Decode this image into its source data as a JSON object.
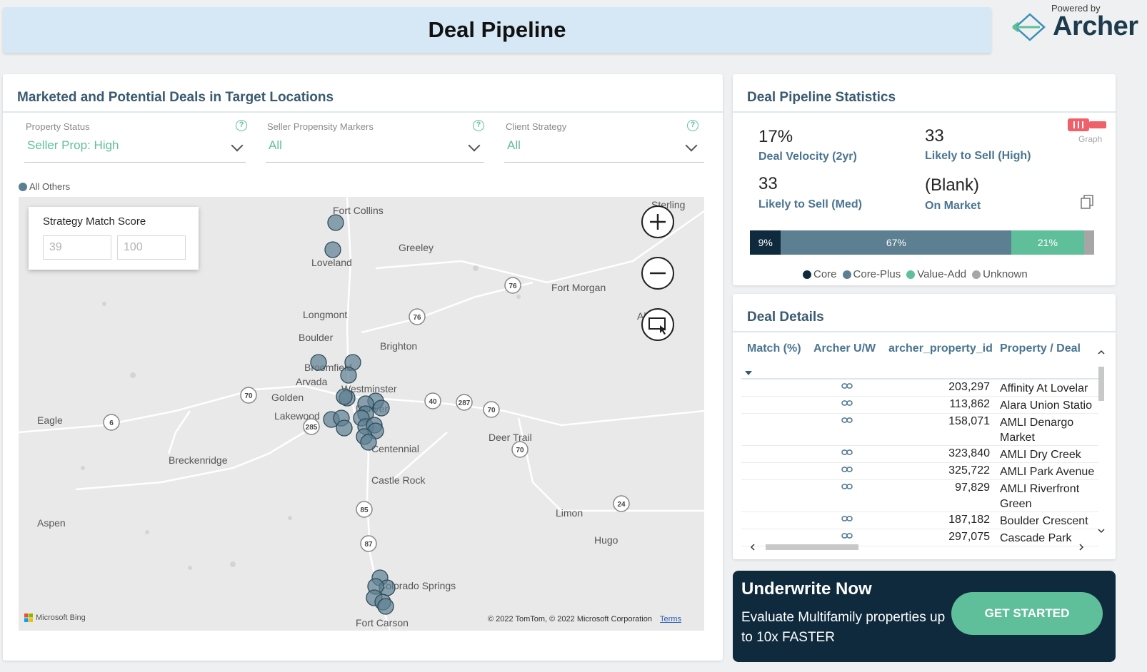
{
  "header": {
    "title": "Deal Pipeline"
  },
  "brand": {
    "powered_by": "Powered by",
    "name": "Archer"
  },
  "map_panel": {
    "title": "Marketed and Potential Deals in Target Locations",
    "slicers": [
      {
        "label": "Property Status",
        "value": "Seller Prop: High"
      },
      {
        "label": "Seller Propensity Markers",
        "value": "All"
      },
      {
        "label": "Client Strategy",
        "value": "All"
      }
    ],
    "legend_label": "All Others",
    "strategy_match": {
      "title": "Strategy Match Score",
      "min": "39",
      "max": "100"
    },
    "cities": [
      {
        "name": "Fort Collins"
      },
      {
        "name": "Greeley"
      },
      {
        "name": "Loveland"
      },
      {
        "name": "Sterling"
      },
      {
        "name": "Longmont"
      },
      {
        "name": "Boulder"
      },
      {
        "name": "Brighton"
      },
      {
        "name": "Fort Morgan"
      },
      {
        "name": "Akron"
      },
      {
        "name": "Broomfield"
      },
      {
        "name": "Arvada"
      },
      {
        "name": "Westminster"
      },
      {
        "name": "Golden"
      },
      {
        "name": "Denver"
      },
      {
        "name": "Lakewood"
      },
      {
        "name": "Eagle"
      },
      {
        "name": "Centennial"
      },
      {
        "name": "Deer Trail"
      },
      {
        "name": "Breckenridge"
      },
      {
        "name": "Castle Rock"
      },
      {
        "name": "Aspen"
      },
      {
        "name": "Limon"
      },
      {
        "name": "Hugo"
      },
      {
        "name": "Colorado Springs"
      },
      {
        "name": "Fort Carson"
      }
    ],
    "shields": [
      "76",
      "76",
      "70",
      "6",
      "285",
      "40",
      "287",
      "70",
      "70",
      "24",
      "85",
      "87"
    ],
    "attribution": {
      "bing": "Microsoft Bing",
      "copyright": "© 2022 TomTom, © 2022 Microsoft Corporation",
      "terms": "Terms"
    },
    "colors": {
      "marker": "#5c7f92",
      "accent": "#5fbf9b"
    }
  },
  "stats_panel": {
    "title": "Deal Pipeline Statistics",
    "stats": [
      {
        "value": "17%",
        "label": "Deal Velocity (2yr)"
      },
      {
        "value": "33",
        "label": "Likely to Sell (High)"
      },
      {
        "value": "33",
        "label": "Likely to Sell (Med)"
      },
      {
        "value": "(Blank)",
        "label": "On Market"
      }
    ],
    "graph_toggle_label": "Graph",
    "breakdown": [
      {
        "name": "Core",
        "pct": 9,
        "label": "9%",
        "color": "#0e2a3c"
      },
      {
        "name": "Core-Plus",
        "pct": 67,
        "label": "67%",
        "color": "#5c7f92"
      },
      {
        "name": "Value-Add",
        "pct": 21,
        "label": "21%",
        "color": "#5fbf9b"
      },
      {
        "name": "Unknown",
        "pct": 3,
        "label": "",
        "color": "#a6a6a6"
      }
    ]
  },
  "details_panel": {
    "title": "Deal Details",
    "columns": [
      "Match (%)",
      "Archer U/W",
      "archer_property_id",
      "Property / Deal"
    ],
    "rows": [
      {
        "id": "203,297",
        "name": "Affinity At Lovelar"
      },
      {
        "id": "113,862",
        "name": "Alara Union Statio"
      },
      {
        "id": "158,071",
        "name": "AMLI Denargo Market"
      },
      {
        "id": "323,840",
        "name": "AMLI Dry Creek"
      },
      {
        "id": "325,722",
        "name": "AMLI Park Avenue"
      },
      {
        "id": "97,829",
        "name": "AMLI Riverfront Green"
      },
      {
        "id": "187,182",
        "name": "Boulder Crescent"
      },
      {
        "id": "297,075",
        "name": "Cascade Park"
      }
    ]
  },
  "cta": {
    "title": "Underwrite Now",
    "text": "Evaluate Multifamily properties up to 10x FASTER",
    "button": "GET STARTED"
  }
}
